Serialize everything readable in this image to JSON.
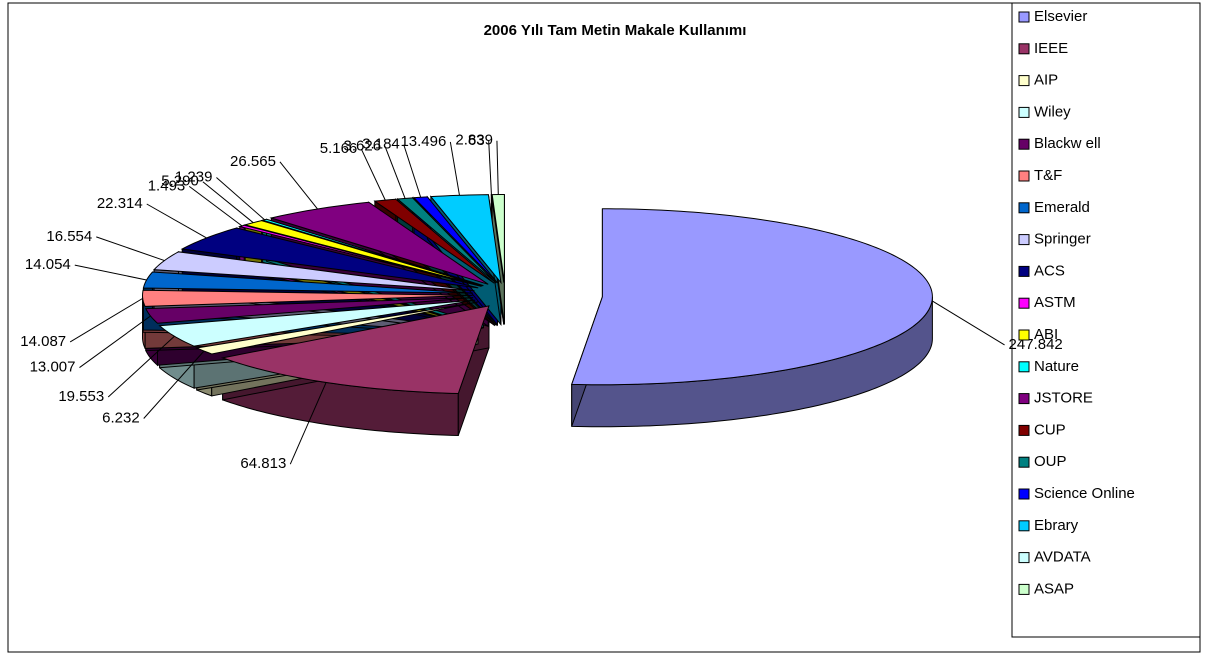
{
  "chart_data": {
    "type": "pie3d",
    "title": "2006 Yılı Tam Metin Makale Kullanımı",
    "categories": [
      "Elsevier",
      "IEEE",
      "AIP",
      "Wiley",
      "Blackw ell",
      "T&F",
      "Emerald",
      "Springer",
      "ACS",
      "ASTM",
      "ABI",
      "Nature",
      "JSTORE",
      "CUP",
      "OUP",
      "Science Online",
      "Ebrary",
      "AVDATA",
      "ASAP"
    ],
    "values": [
      247842,
      64813,
      6232,
      19553,
      13007,
      14087,
      14054,
      16554,
      22314,
      1493,
      5290,
      1239,
      26565,
      5166,
      3626,
      3184,
      13496,
      63,
      2839
    ],
    "value_labels": [
      "247.842",
      "64.813",
      "6.232",
      "19.553",
      "13.007",
      "14.087",
      "14.054",
      "16.554",
      "22.314",
      "1.493",
      "5.290",
      "1.239",
      "26.565",
      "5.166",
      "3.626",
      "3.184",
      "13.496",
      "63",
      "2.839"
    ],
    "colors": [
      "#9999FF",
      "#993366",
      "#FFFFCC",
      "#CCFFFF",
      "#660066",
      "#FF8080",
      "#0066CC",
      "#CCCCFF",
      "#000080",
      "#FF00FF",
      "#FFFF00",
      "#00FFFF",
      "#800080",
      "#800000",
      "#008080",
      "#0000FF",
      "#00CCFF",
      "#CCFFFF",
      "#CCFFCC"
    ],
    "legend": "right"
  }
}
